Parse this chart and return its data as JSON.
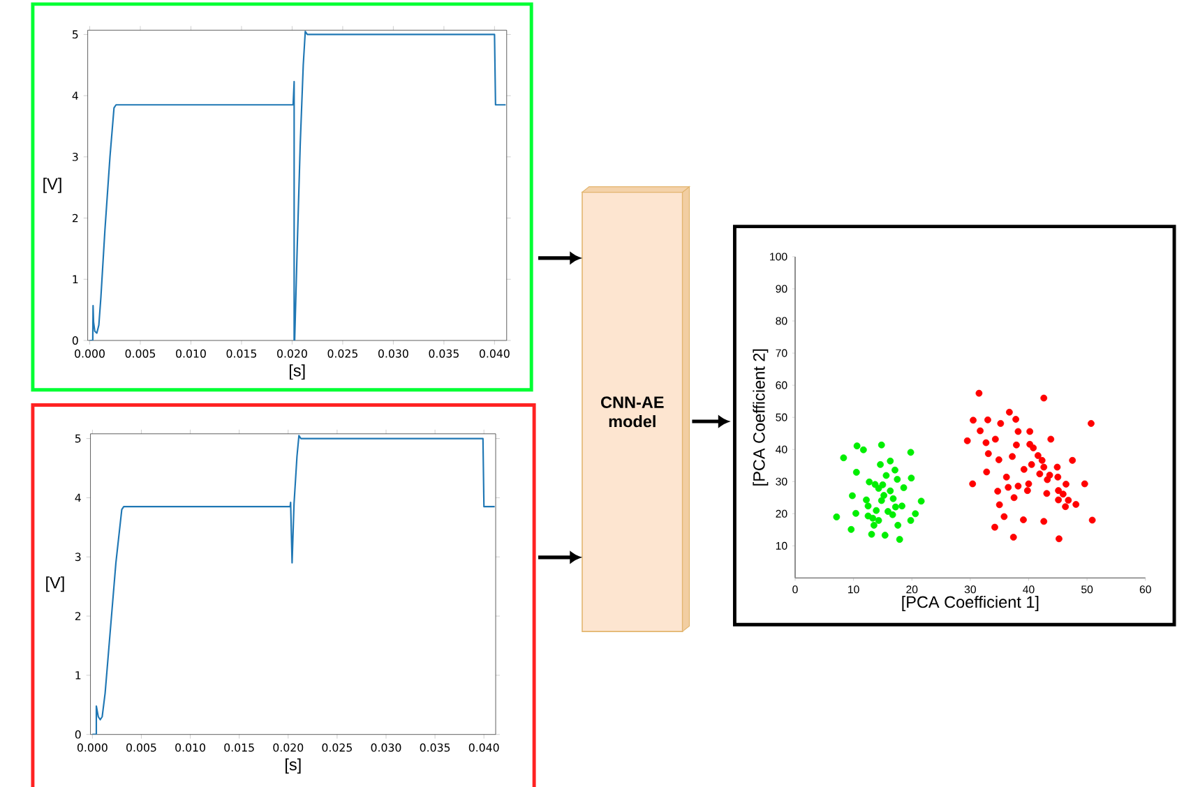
{
  "chart_data": [
    {
      "type": "line",
      "xlabel": "[s]",
      "ylabel": "[V]",
      "xlim": [
        -0.0002,
        0.0412
      ],
      "ylim": [
        0,
        5.07
      ],
      "xticks": [
        {
          "value": 0,
          "label": "0.000"
        },
        {
          "value": 0.005,
          "label": "0.005"
        },
        {
          "value": 0.01,
          "label": "0.010"
        },
        {
          "value": 0.015,
          "label": "0.015"
        },
        {
          "value": 0.02,
          "label": "0.020"
        },
        {
          "value": 0.025,
          "label": "0.025"
        },
        {
          "value": 0.03,
          "label": "0.030"
        },
        {
          "value": 0.035,
          "label": "0.035"
        },
        {
          "value": 0.04,
          "label": "0.040"
        }
      ],
      "yticks": [
        0,
        1,
        2,
        3,
        4,
        5
      ],
      "series": [
        {
          "color": "#1f77b4",
          "x": [
            0,
            0.0003,
            0.00033,
            0.00038,
            0.0005,
            0.0007,
            0.0009,
            0.0011,
            0.0015,
            0.002,
            0.0024,
            0.0026,
            0.0201,
            0.0202,
            0.0202,
            0.02025,
            0.0205,
            0.0208,
            0.0211,
            0.0213,
            0.0215,
            0.04,
            0.0401,
            0.0411
          ],
          "values": [
            0,
            0,
            0.57,
            0.3,
            0.15,
            0.12,
            0.25,
            0.7,
            1.8,
            3.0,
            3.8,
            3.85,
            3.85,
            4.23,
            0,
            0,
            1.5,
            3.2,
            4.5,
            5.05,
            5.0,
            5.0,
            3.85,
            3.85
          ]
        }
      ]
    },
    {
      "type": "line",
      "xlabel": "[s]",
      "ylabel": "[V]",
      "xlim": [
        -0.0002,
        0.0412
      ],
      "ylim": [
        0,
        5.08
      ],
      "xticks": [
        {
          "value": 0,
          "label": "0.000"
        },
        {
          "value": 0.005,
          "label": "0.005"
        },
        {
          "value": 0.01,
          "label": "0.010"
        },
        {
          "value": 0.015,
          "label": "0.015"
        },
        {
          "value": 0.02,
          "label": "0.020"
        },
        {
          "value": 0.025,
          "label": "0.025"
        },
        {
          "value": 0.03,
          "label": "0.030"
        },
        {
          "value": 0.035,
          "label": "0.035"
        },
        {
          "value": 0.04,
          "label": "0.040"
        }
      ],
      "yticks": [
        0,
        1,
        2,
        3,
        4,
        5
      ],
      "series": [
        {
          "color": "#1f77b4",
          "x": [
            0,
            0.0004,
            0.0004,
            0.0006,
            0.0008,
            0.001,
            0.0013,
            0.0018,
            0.0024,
            0.003,
            0.0032,
            0.0202,
            0.02025,
            0.0204,
            0.0206,
            0.0209,
            0.0211,
            0.0213,
            0.0399,
            0.04,
            0.0411
          ],
          "values": [
            0,
            0,
            0.48,
            0.3,
            0.25,
            0.3,
            0.7,
            1.7,
            2.9,
            3.8,
            3.85,
            3.85,
            3.92,
            2.9,
            3.9,
            4.7,
            5.05,
            5.0,
            5.0,
            3.85,
            3.85
          ]
        }
      ]
    },
    {
      "type": "other",
      "title": "CNN-AE model"
    },
    {
      "type": "scatter",
      "xlabel": "[PCA Coefficient 1]",
      "ylabel": "[PCA Coefficient 2]",
      "xlim": [
        0,
        60
      ],
      "ylim": [
        0,
        100
      ],
      "xticks": [
        0,
        10,
        20,
        30,
        40,
        50,
        60
      ],
      "yticks": [
        10,
        20,
        30,
        40,
        50,
        60,
        70,
        80,
        90,
        100
      ],
      "marker": "circle",
      "series": [
        {
          "color": "#00ee00",
          "x": [
            8.3,
            10.6,
            11.7,
            14.8,
            19.8,
            10.5,
            14.6,
            16.3,
            17.1,
            12.7,
            13.7,
            15.6,
            17.5,
            19.9,
            9.8,
            12.2,
            14.3,
            15.2,
            16.8,
            18.6,
            10.4,
            12.5,
            13.9,
            13.3,
            14.3,
            15.9,
            17.2,
            18.3,
            7.1,
            9.6,
            13.1,
            15.4,
            17.9,
            17.6,
            19.8,
            20.6,
            21.6,
            16.7,
            14.8,
            13.5,
            12.5,
            15.0,
            16.3
          ],
          "values": [
            37.4,
            41.1,
            39.9,
            41.4,
            39.1,
            32.9,
            35.3,
            36.4,
            33.6,
            29.9,
            29.1,
            31.9,
            30.7,
            31.1,
            25.6,
            24.3,
            27.9,
            25.7,
            24.7,
            28.1,
            20.1,
            19.3,
            21.0,
            18.6,
            17.9,
            20.7,
            22.1,
            22.4,
            19.0,
            15.1,
            13.6,
            13.3,
            12.0,
            16.4,
            17.9,
            20.0,
            23.9,
            19.7,
            24.1,
            16.4,
            22.4,
            29.0,
            27.1
          ]
        },
        {
          "color": "#ff0000",
          "x": [
            31.5,
            42.6,
            36.7,
            37.8,
            30.5,
            33.0,
            35.2,
            50.7,
            31.7,
            38.2,
            40.2,
            29.5,
            32.7,
            34.3,
            43.8,
            37.9,
            40.2,
            40.8,
            33.1,
            37.2,
            34.9,
            41.6,
            42.3,
            47.5,
            40.5,
            42.6,
            44.9,
            32.8,
            39.2,
            41.9,
            43.6,
            45.0,
            36.2,
            43.2,
            30.4,
            40.0,
            46.4,
            49.6,
            36.5,
            38.2,
            39.8,
            34.7,
            43.1,
            45.1,
            37.5,
            45.9,
            46.8,
            35.0,
            45.1,
            46.3,
            48.1,
            35.8,
            39.1,
            42.6,
            50.9,
            34.2,
            37.4,
            45.2
          ],
          "values": [
            57.5,
            56.0,
            51.6,
            49.4,
            49.1,
            49.2,
            48.1,
            48.1,
            45.8,
            45.6,
            45.6,
            42.7,
            42.1,
            43.2,
            43.2,
            41.4,
            41.6,
            40.5,
            38.7,
            37.8,
            36.8,
            38.1,
            36.6,
            36.6,
            35.3,
            34.5,
            34.5,
            33.0,
            33.8,
            32.4,
            32.0,
            31.4,
            31.4,
            30.6,
            29.3,
            29.3,
            29.2,
            29.3,
            28.2,
            28.6,
            27.2,
            27.0,
            26.3,
            27.2,
            25.0,
            26.1,
            24.2,
            22.8,
            24.3,
            22.2,
            22.9,
            19.1,
            18.1,
            17.6,
            18.0,
            15.8,
            12.7,
            12.2
          ]
        }
      ]
    }
  ]
}
